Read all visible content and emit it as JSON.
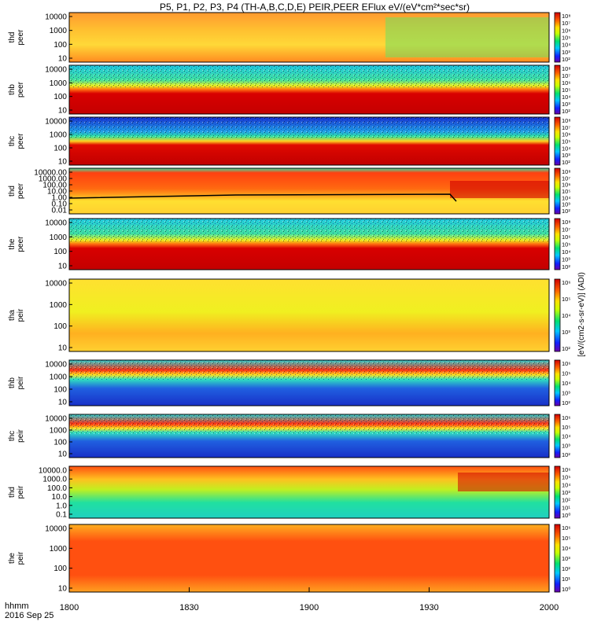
{
  "title": "P5, P1, P2, P3, P4 (TH-A,B,C,D,E) PEIR,PEER EFlux eV/(eV*cm²*sec*sr)",
  "time_axis": {
    "label_line1": "hhmm",
    "label_line2": "2016 Sep 25",
    "ticks": [
      "1800",
      "1830",
      "1900",
      "1930",
      "2000"
    ]
  },
  "colorbar_unit_label": "[eV/(cm2-s-sr-eV)] ...",
  "colorbar_unit_label_right": "[eV/(cm2-s-sr-eV)] (ADI)",
  "chart_data": [
    {
      "type": "heatmap",
      "probe": "thd",
      "species": "peer",
      "ylabel": "thd peer",
      "yticks": [
        "10000",
        "1000",
        "100",
        "10"
      ],
      "colorbar_ticks": [
        "10⁸",
        "10⁷",
        "10⁶",
        "10⁵",
        "10⁴",
        "10³",
        "10²"
      ],
      "x_range": [
        "1800",
        "2000"
      ],
      "pattern": "yellow-orange broad band, green patches after 1930"
    },
    {
      "type": "heatmap",
      "probe": "thb",
      "species": "peer",
      "ylabel": "thb peer",
      "yticks": [
        "10000",
        "1000",
        "100",
        "10"
      ],
      "colorbar_ticks": [
        "10⁸",
        "10⁷",
        "10⁶",
        "10⁵",
        "10⁴",
        "10³",
        "10²"
      ],
      "x_range": [
        "1800",
        "2000"
      ]
    },
    {
      "type": "heatmap",
      "probe": "thc",
      "species": "peer",
      "ylabel": "thc peer",
      "yticks": [
        "10000",
        "1000",
        "100",
        "10"
      ],
      "colorbar_ticks": [
        "10⁸",
        "10⁷",
        "10⁶",
        "10⁵",
        "10⁴",
        "10³",
        "10²"
      ],
      "x_range": [
        "1800",
        "2000"
      ]
    },
    {
      "type": "heatmap",
      "probe": "thd",
      "species": "peer",
      "ylabel": "thd peer",
      "yticks": [
        "10000.00",
        "1000.00",
        "100.00",
        "10.00",
        "1.00",
        "0.10",
        "0.01"
      ],
      "colorbar_ticks": [
        "10⁸",
        "10⁷",
        "10⁶",
        "10⁵",
        "10⁴",
        "10³",
        "10²"
      ],
      "x_range": [
        "1800",
        "2000"
      ]
    },
    {
      "type": "heatmap",
      "probe": "the",
      "species": "peer",
      "ylabel": "the peer",
      "yticks": [
        "10000",
        "1000",
        "100",
        "10"
      ],
      "colorbar_ticks": [
        "10⁸",
        "10⁷",
        "10⁶",
        "10⁵",
        "10⁴",
        "10³",
        "10²"
      ],
      "x_range": [
        "1800",
        "2000"
      ]
    },
    {
      "type": "heatmap",
      "probe": "tha",
      "species": "peir",
      "ylabel": "tha peir",
      "yticks": [
        "10000",
        "1000",
        "100",
        "10"
      ],
      "colorbar_ticks": [
        "10⁶",
        "10⁵",
        "10⁴",
        "10³",
        "10²"
      ],
      "x_range": [
        "1800",
        "2000"
      ]
    },
    {
      "type": "heatmap",
      "probe": "thb",
      "species": "peir",
      "ylabel": "thb peir",
      "yticks": [
        "10000",
        "1000",
        "100",
        "10"
      ],
      "colorbar_ticks": [
        "10⁶",
        "10⁵",
        "10⁴",
        "10³",
        "10²"
      ],
      "x_range": [
        "1800",
        "2000"
      ]
    },
    {
      "type": "heatmap",
      "probe": "thc",
      "species": "peir",
      "ylabel": "thc peir",
      "yticks": [
        "10000",
        "1000",
        "100",
        "10"
      ],
      "colorbar_ticks": [
        "10⁶",
        "10⁵",
        "10⁴",
        "10³",
        "10²"
      ],
      "x_range": [
        "1800",
        "2000"
      ]
    },
    {
      "type": "heatmap",
      "probe": "thd",
      "species": "peir",
      "ylabel": "thd peir",
      "yticks": [
        "10000.0",
        "1000.0",
        "100.0",
        "10.0",
        "1.0",
        "0.1"
      ],
      "colorbar_ticks": [
        "10⁶",
        "10⁵",
        "10⁴",
        "10³",
        "10²",
        "10¹",
        "10⁰"
      ],
      "x_range": [
        "1800",
        "2000"
      ]
    },
    {
      "type": "heatmap",
      "probe": "the",
      "species": "peir",
      "ylabel": "the peir",
      "yticks": [
        "10000",
        "1000",
        "100",
        "10"
      ],
      "colorbar_ticks": [
        "10⁶",
        "10⁵",
        "10⁴",
        "10³",
        "10²",
        "10¹",
        "10⁰"
      ],
      "x_range": [
        "1800",
        "2000"
      ]
    }
  ]
}
